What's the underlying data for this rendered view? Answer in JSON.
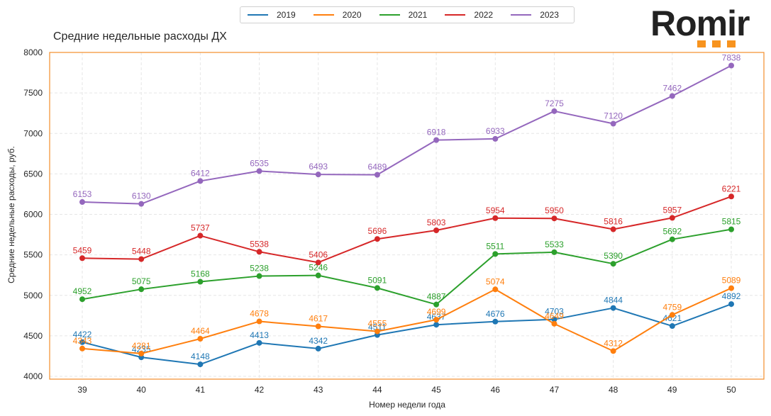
{
  "logo": {
    "text": "Romir",
    "accent_color": "#f7931e"
  },
  "chart_data": {
    "type": "line",
    "title": "Средние недельные расходы ДХ",
    "xlabel": "Номер недели года",
    "ylabel": "Средние недельные расходы, руб.",
    "x": [
      39,
      40,
      41,
      42,
      43,
      44,
      45,
      46,
      47,
      48,
      49,
      50
    ],
    "xticks": [
      "39",
      "40",
      "41",
      "42",
      "43",
      "44",
      "45",
      "46",
      "47",
      "48",
      "49",
      "50"
    ],
    "ylim": [
      4000,
      8000
    ],
    "yticks": [
      "4000",
      "4500",
      "5000",
      "5500",
      "6000",
      "6500",
      "7000",
      "7500",
      "8000"
    ],
    "grid": true,
    "legend_position": "top-center",
    "frame_color": "#f28e2b",
    "series": [
      {
        "name": "2019",
        "color": "#1f77b4",
        "values": [
          4422,
          4235,
          4148,
          4413,
          4342,
          4511,
          4637,
          4676,
          4703,
          4844,
          4621,
          4892
        ]
      },
      {
        "name": "2020",
        "color": "#ff7f0e",
        "values": [
          4343,
          4281,
          4464,
          4678,
          4617,
          4555,
          4699,
          5074,
          4649,
          4312,
          4759,
          5089
        ]
      },
      {
        "name": "2021",
        "color": "#2ca02c",
        "values": [
          4952,
          5075,
          5168,
          5238,
          5246,
          5091,
          4887,
          5511,
          5533,
          5390,
          5692,
          5815
        ]
      },
      {
        "name": "2022",
        "color": "#d62728",
        "values": [
          5459,
          5448,
          5737,
          5538,
          5406,
          5696,
          5803,
          5954,
          5950,
          5816,
          5957,
          6221
        ]
      },
      {
        "name": "2023",
        "color": "#9467bd",
        "values": [
          6153,
          6130,
          6412,
          6535,
          6493,
          6489,
          6918,
          6933,
          7275,
          7120,
          7462,
          7838
        ]
      }
    ]
  }
}
